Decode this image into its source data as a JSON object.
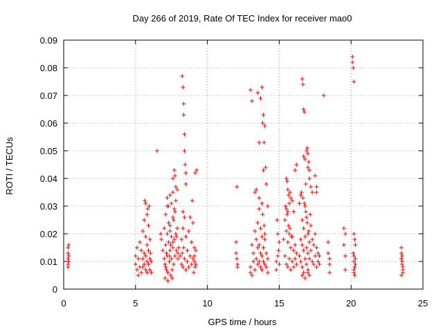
{
  "colors": {
    "series": "#ff0000",
    "grid": "#a0a0a0",
    "axis": "#000000",
    "background": "#ffffff"
  },
  "chart_data": {
    "type": "scatter",
    "title": "Day 266 of 2019, Rate Of TEC Index for receiver mao0",
    "xlabel": "GPS time / hours",
    "ylabel": "ROTI / TECUs",
    "xlim": [
      0,
      25
    ],
    "ylim": [
      0,
      0.09
    ],
    "xticks": [
      0,
      5,
      10,
      15,
      20,
      25
    ],
    "xtick_labels": [
      "0",
      "5",
      "10",
      "15",
      "20",
      "25"
    ],
    "yticks": [
      0,
      0.01,
      0.02,
      0.03,
      0.04,
      0.05,
      0.06,
      0.07,
      0.08,
      0.09
    ],
    "ytick_labels": [
      "0",
      "0.01",
      "0.02",
      "0.03",
      "0.04",
      "0.05",
      "0.06",
      "0.07",
      "0.08",
      "0.09"
    ],
    "grid": true,
    "marker": "+",
    "series": [
      {
        "name": "ROTI",
        "x": [
          0.3,
          0.3,
          0.3,
          0.3,
          0.3,
          0.35,
          0.35,
          0.35,
          5.0,
          5.0,
          5.1,
          5.1,
          5.2,
          5.2,
          5.3,
          5.3,
          5.4,
          5.4,
          5.5,
          5.5,
          5.5,
          5.6,
          5.6,
          5.6,
          5.7,
          5.7,
          5.7,
          5.7,
          5.8,
          5.8,
          5.8,
          5.8,
          5.9,
          5.9,
          5.9,
          6.0,
          6.0,
          6.0,
          6.05,
          6.1,
          6.1,
          5.95,
          5.65,
          5.85,
          6.8,
          6.9,
          7.0,
          7.0,
          7.05,
          7.1,
          7.1,
          7.1,
          7.15,
          7.2,
          7.2,
          7.2,
          7.25,
          7.3,
          7.3,
          7.3,
          7.35,
          7.4,
          7.4,
          7.4,
          7.45,
          7.5,
          7.5,
          7.5,
          7.55,
          7.6,
          7.6,
          7.6,
          7.65,
          7.7,
          7.7,
          7.75,
          7.8,
          7.8,
          7.85,
          7.9,
          7.9,
          7.95,
          8.0,
          7.05,
          7.15,
          7.25,
          7.35,
          7.45,
          7.55,
          7.65,
          7.75,
          7.85,
          7.95,
          7.2,
          7.4,
          7.6,
          6.75,
          8.1,
          8.2,
          8.2,
          8.25,
          8.3,
          8.3,
          8.3,
          8.35,
          8.4,
          8.4,
          8.5,
          8.5,
          8.6,
          8.6,
          8.7,
          8.7,
          8.8,
          8.8,
          8.9,
          8.9,
          9.0,
          9.0,
          9.05,
          9.1,
          9.1,
          9.15,
          9.2,
          9.2,
          9.1,
          8.25,
          8.3,
          8.35,
          8.35,
          8.4,
          8.4,
          8.45,
          8.5,
          8.5,
          7.6,
          7.7,
          7.75,
          7.8,
          7.9,
          9.15,
          9.25,
          8.95,
          6.5,
          12.0,
          12.0,
          12.05,
          12.1,
          12.1,
          12.05,
          13.0,
          13.0,
          13.1,
          13.1,
          13.2,
          13.2,
          13.3,
          13.3,
          13.4,
          13.4,
          13.5,
          13.5,
          13.5,
          13.6,
          13.6,
          13.6,
          13.7,
          13.7,
          13.7,
          13.8,
          13.8,
          13.8,
          13.9,
          13.9,
          14.0,
          14.0,
          14.1,
          14.1,
          14.2,
          14.2,
          14.0,
          13.6,
          13.8,
          13.0,
          13.1,
          13.5,
          13.6,
          13.7,
          13.8,
          13.85,
          13.9,
          14.0,
          13.95,
          14.05,
          13.9,
          14.1,
          13.4,
          13.3,
          13.85,
          13.95,
          14.2,
          14.8,
          14.8,
          14.9,
          14.9,
          15.0,
          15.0,
          14.85,
          14.95,
          15.3,
          15.4,
          15.4,
          15.5,
          15.5,
          15.6,
          15.6,
          15.7,
          15.7,
          15.8,
          15.8,
          15.9,
          15.9,
          16.0,
          16.0,
          16.1,
          16.1,
          16.2,
          16.2,
          15.45,
          15.55,
          15.65,
          15.75,
          15.85,
          15.5,
          15.55,
          15.6,
          15.65,
          15.7,
          15.5,
          15.6,
          15.75,
          15.8,
          16.1,
          16.2,
          15.9,
          16.0,
          16.4,
          16.5,
          16.5,
          16.6,
          16.6,
          16.6,
          16.7,
          16.7,
          16.7,
          16.8,
          16.8,
          16.8,
          16.9,
          16.9,
          16.9,
          17.0,
          17.0,
          17.0,
          17.1,
          17.1,
          17.1,
          17.2,
          17.2,
          17.3,
          17.3,
          17.4,
          17.4,
          17.5,
          17.5,
          17.6,
          17.6,
          17.7,
          17.7,
          17.8,
          17.8,
          16.55,
          16.65,
          16.75,
          16.85,
          16.95,
          17.05,
          17.15,
          16.6,
          16.8,
          17.0,
          16.6,
          16.65,
          16.7,
          16.75,
          16.7,
          16.8,
          16.9,
          16.95,
          17.0,
          17.05,
          17.0,
          17.1,
          17.1,
          16.85,
          17.2,
          17.3,
          16.4,
          16.5,
          17.5,
          17.6,
          17.6,
          18.1,
          18.4,
          18.4,
          18.5,
          18.5,
          18.5,
          19.5,
          19.5,
          19.6,
          19.6,
          19.6,
          20.1,
          20.1,
          20.15,
          20.2,
          20.2,
          20.25,
          20.3,
          20.3,
          20.3,
          20.15,
          20.2,
          20.25,
          20.2,
          20.2,
          20.25,
          20.2,
          23.5,
          23.5,
          23.5,
          23.55,
          23.55,
          23.6,
          23.6,
          23.6,
          23.5,
          23.55
        ],
        "y": [
          0.015,
          0.013,
          0.011,
          0.009,
          0.008,
          0.016,
          0.012,
          0.01,
          0.012,
          0.009,
          0.015,
          0.007,
          0.011,
          0.005,
          0.017,
          0.008,
          0.014,
          0.006,
          0.021,
          0.011,
          0.008,
          0.025,
          0.013,
          0.009,
          0.031,
          0.019,
          0.012,
          0.007,
          0.027,
          0.016,
          0.01,
          0.006,
          0.023,
          0.014,
          0.009,
          0.018,
          0.011,
          0.007,
          0.013,
          0.01,
          0.006,
          0.03,
          0.032,
          0.029,
          0.018,
          0.014,
          0.022,
          0.011,
          0.009,
          0.027,
          0.016,
          0.008,
          0.013,
          0.033,
          0.02,
          0.012,
          0.006,
          0.03,
          0.024,
          0.017,
          0.01,
          0.034,
          0.021,
          0.014,
          0.005,
          0.031,
          0.019,
          0.011,
          0.004,
          0.035,
          0.026,
          0.015,
          0.009,
          0.029,
          0.018,
          0.012,
          0.032,
          0.02,
          0.014,
          0.036,
          0.022,
          0.011,
          0.015,
          0.004,
          0.007,
          0.003,
          0.012,
          0.016,
          0.007,
          0.025,
          0.028,
          0.019,
          0.013,
          0.03,
          0.023,
          0.017,
          0.02,
          0.012,
          0.018,
          0.009,
          0.013,
          0.028,
          0.022,
          0.008,
          0.015,
          0.026,
          0.011,
          0.019,
          0.007,
          0.014,
          0.01,
          0.021,
          0.008,
          0.026,
          0.012,
          0.017,
          0.009,
          0.024,
          0.011,
          0.006,
          0.015,
          0.01,
          0.008,
          0.014,
          0.009,
          0.012,
          0.077,
          0.073,
          0.067,
          0.063,
          0.056,
          0.05,
          0.045,
          0.042,
          0.038,
          0.04,
          0.043,
          0.041,
          0.037,
          0.036,
          0.042,
          0.043,
          0.032,
          0.05,
          0.017,
          0.013,
          0.011,
          0.009,
          0.008,
          0.037,
          0.008,
          0.006,
          0.016,
          0.005,
          0.013,
          0.01,
          0.021,
          0.007,
          0.018,
          0.011,
          0.024,
          0.015,
          0.009,
          0.029,
          0.016,
          0.01,
          0.022,
          0.013,
          0.008,
          0.019,
          0.012,
          0.007,
          0.015,
          0.01,
          0.018,
          0.009,
          0.013,
          0.008,
          0.011,
          0.006,
          0.02,
          0.033,
          0.031,
          0.072,
          0.068,
          0.071,
          0.053,
          0.069,
          0.073,
          0.06,
          0.063,
          0.059,
          0.053,
          0.044,
          0.043,
          0.038,
          0.036,
          0.035,
          0.027,
          0.023,
          0.03,
          0.01,
          0.007,
          0.02,
          0.012,
          0.017,
          0.009,
          0.025,
          0.014,
          0.018,
          0.025,
          0.012,
          0.021,
          0.009,
          0.017,
          0.008,
          0.02,
          0.011,
          0.015,
          0.007,
          0.019,
          0.01,
          0.014,
          0.008,
          0.016,
          0.011,
          0.013,
          0.009,
          0.03,
          0.027,
          0.023,
          0.022,
          0.019,
          0.04,
          0.039,
          0.036,
          0.034,
          0.031,
          0.029,
          0.028,
          0.035,
          0.033,
          0.043,
          0.045,
          0.032,
          0.028,
          0.012,
          0.018,
          0.01,
          0.025,
          0.016,
          0.008,
          0.022,
          0.014,
          0.006,
          0.03,
          0.019,
          0.011,
          0.026,
          0.015,
          0.009,
          0.02,
          0.013,
          0.007,
          0.017,
          0.011,
          0.005,
          0.023,
          0.014,
          0.018,
          0.01,
          0.016,
          0.009,
          0.02,
          0.012,
          0.015,
          0.008,
          0.013,
          0.01,
          0.012,
          0.009,
          0.035,
          0.033,
          0.031,
          0.028,
          0.024,
          0.021,
          0.027,
          0.005,
          0.004,
          0.006,
          0.076,
          0.074,
          0.065,
          0.064,
          0.048,
          0.047,
          0.05,
          0.051,
          0.049,
          0.046,
          0.044,
          0.043,
          0.04,
          0.038,
          0.037,
          0.035,
          0.031,
          0.034,
          0.041,
          0.037,
          0.035,
          0.07,
          0.017,
          0.013,
          0.011,
          0.009,
          0.006,
          0.022,
          0.016,
          0.012,
          0.007,
          0.02,
          0.084,
          0.082,
          0.08,
          0.075,
          0.02,
          0.018,
          0.016,
          0.011,
          0.009,
          0.013,
          0.01,
          0.008,
          0.007,
          0.006,
          0.005,
          0.012,
          0.015,
          0.013,
          0.011,
          0.01,
          0.009,
          0.008,
          0.007,
          0.006,
          0.005,
          0.012
        ]
      }
    ]
  }
}
